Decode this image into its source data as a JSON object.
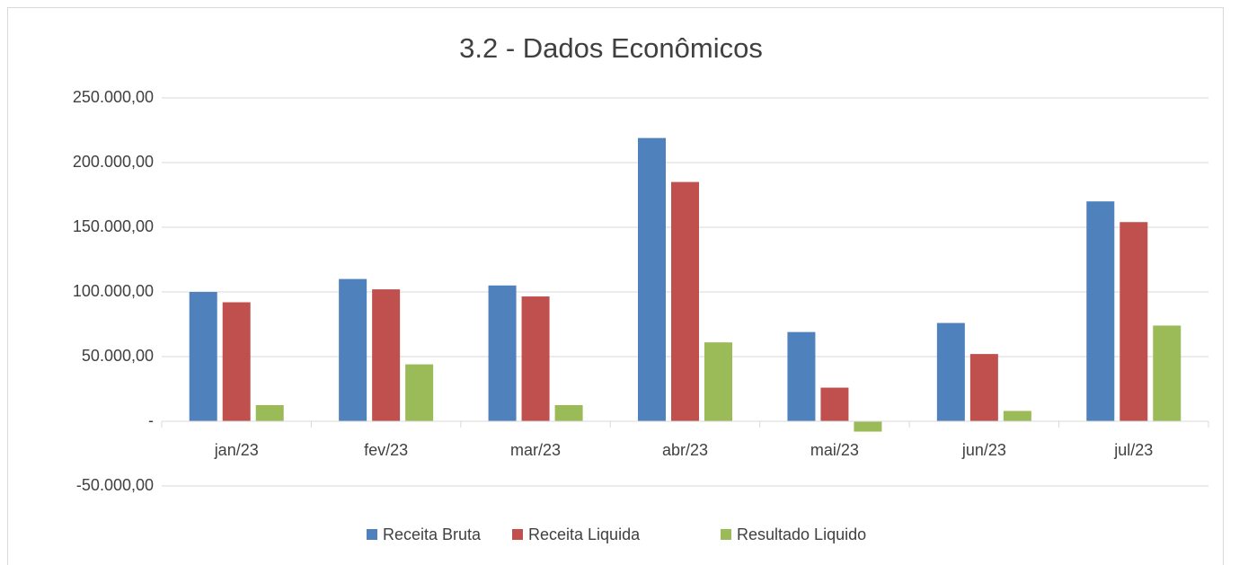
{
  "chart_data": {
    "type": "bar",
    "title": "3.2 - Dados Econômicos",
    "categories": [
      "jan/23",
      "fev/23",
      "mar/23",
      "abr/23",
      "mai/23",
      "jun/23",
      "jul/23"
    ],
    "series": [
      {
        "name": "Receita Bruta",
        "color": "#4f81bd",
        "values": [
          100000,
          110000,
          105000,
          219000,
          69000,
          76000,
          170000
        ]
      },
      {
        "name": "Receita Liquida",
        "color": "#c0504d",
        "values": [
          92000,
          102000,
          96500,
          185000,
          26000,
          52000,
          154000
        ]
      },
      {
        "name": "Resultado Liquido",
        "color": "#9bbb59",
        "values": [
          12500,
          44000,
          12500,
          61000,
          -8000,
          8000,
          74000
        ]
      }
    ],
    "ylim": [
      -50000,
      250000
    ],
    "yticks": [
      {
        "value": -50000,
        "label": "-50.000,00"
      },
      {
        "value": 0,
        "label": "-"
      },
      {
        "value": 50000,
        "label": "50.000,00"
      },
      {
        "value": 100000,
        "label": "100.000,00"
      },
      {
        "value": 150000,
        "label": "150.000,00"
      },
      {
        "value": 200000,
        "label": "200.000,00"
      },
      {
        "value": 250000,
        "label": "250.000,00"
      }
    ],
    "grid": true,
    "legend": "bottom"
  }
}
